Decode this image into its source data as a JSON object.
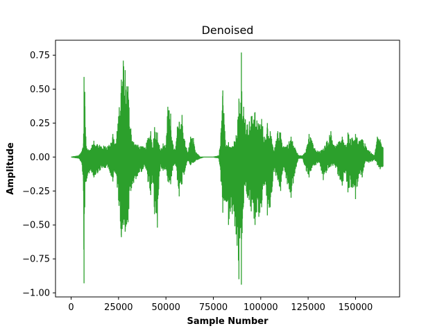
{
  "chart_data": {
    "type": "line",
    "title": "Denoised",
    "xlabel": "Sample Number",
    "ylabel": "Amplitude",
    "xlim": [
      -8250,
      173250
    ],
    "ylim": [
      -1.03,
      0.86
    ],
    "xticks": [
      0,
      25000,
      50000,
      75000,
      100000,
      125000,
      150000
    ],
    "xtick_labels": [
      "0",
      "25000",
      "50000",
      "75000",
      "100000",
      "125000",
      "150000"
    ],
    "yticks": [
      -1.0,
      -0.75,
      -0.5,
      -0.25,
      0.0,
      0.25,
      0.5,
      0.75
    ],
    "ytick_labels": [
      "−1.00",
      "−0.75",
      "−0.50",
      "−0.25",
      "0.00",
      "0.25",
      "0.50",
      "0.75"
    ],
    "grid": false,
    "color": "#2ca02c",
    "series": [
      {
        "envelope_x": [
          0,
          2000,
          4000,
          5500,
          6500,
          6800,
          7200,
          8000,
          10000,
          12000,
          15000,
          18000,
          20000,
          22000,
          23500,
          25000,
          26500,
          27500,
          28500,
          30000,
          31500,
          33000,
          35000,
          37000,
          39000,
          40500,
          42000,
          43000,
          44000,
          45500,
          47000,
          48500,
          50000,
          51000,
          52500,
          53500,
          55000,
          56000,
          57000,
          58500,
          60000,
          61500,
          63000,
          64500,
          65500,
          67000,
          68000,
          70000,
          75000,
          78000,
          79000,
          80000,
          81500,
          83000,
          85000,
          87000,
          88500,
          89500,
          89800,
          90200,
          91000,
          93000,
          95000,
          97000,
          99000,
          100500,
          102000,
          103500,
          105000,
          107000,
          109000,
          110500,
          112000,
          114000,
          116000,
          118000,
          120000,
          122000,
          124000,
          125500,
          127000,
          129000,
          131000,
          133000,
          135000,
          137000,
          139000,
          141000,
          143000,
          144500,
          146000,
          148000,
          150000,
          152000,
          153500,
          155000,
          157000,
          159000,
          160000,
          161500,
          163000,
          164500
        ],
        "upper": [
          0.0,
          0.005,
          0.01,
          0.04,
          0.1,
          0.59,
          0.48,
          0.08,
          0.05,
          0.12,
          0.09,
          0.08,
          0.09,
          0.17,
          0.1,
          0.3,
          0.57,
          0.71,
          0.64,
          0.52,
          0.21,
          0.11,
          0.09,
          0.08,
          0.07,
          0.14,
          0.19,
          0.07,
          0.22,
          0.18,
          0.05,
          0.1,
          0.09,
          0.37,
          0.32,
          0.1,
          0.05,
          0.22,
          0.26,
          0.31,
          0.12,
          0.03,
          0.15,
          0.14,
          0.04,
          0.02,
          0.0,
          0.0,
          0.0,
          0.01,
          0.18,
          0.49,
          0.08,
          0.11,
          0.08,
          0.16,
          0.43,
          0.4,
          0.77,
          0.28,
          0.37,
          0.24,
          0.3,
          0.33,
          0.24,
          0.28,
          0.15,
          0.25,
          0.19,
          0.04,
          0.19,
          0.18,
          0.08,
          0.09,
          0.15,
          0.07,
          0.01,
          0.01,
          0.06,
          0.17,
          0.12,
          0.05,
          0.04,
          0.06,
          0.12,
          0.19,
          0.08,
          0.11,
          0.15,
          0.08,
          0.18,
          0.14,
          0.17,
          0.12,
          0.13,
          0.1,
          0.05,
          0.02,
          0.01,
          0.15,
          0.13,
          0.07
        ],
        "lower": [
          0.0,
          -0.005,
          -0.01,
          -0.04,
          -0.25,
          -0.93,
          -0.37,
          -0.18,
          -0.1,
          -0.15,
          -0.1,
          -0.08,
          -0.09,
          -0.18,
          -0.12,
          -0.32,
          -0.59,
          -0.5,
          -0.55,
          -0.48,
          -0.25,
          -0.19,
          -0.14,
          -0.11,
          -0.07,
          -0.18,
          -0.28,
          -0.19,
          -0.42,
          -0.52,
          -0.07,
          -0.1,
          -0.09,
          -0.18,
          -0.2,
          -0.1,
          -0.05,
          -0.17,
          -0.29,
          -0.2,
          -0.1,
          -0.03,
          -0.06,
          -0.04,
          -0.03,
          -0.02,
          -0.01,
          0.0,
          0.0,
          -0.01,
          -0.18,
          -0.41,
          -0.32,
          -0.5,
          -0.42,
          -0.57,
          -0.9,
          -0.52,
          -0.94,
          -0.56,
          -0.34,
          -0.3,
          -0.4,
          -0.5,
          -0.44,
          -0.37,
          -0.19,
          -0.43,
          -0.37,
          -0.11,
          -0.17,
          -0.25,
          -0.07,
          -0.2,
          -0.3,
          -0.12,
          -0.01,
          -0.01,
          -0.1,
          -0.15,
          -0.08,
          -0.06,
          -0.04,
          -0.17,
          -0.1,
          -0.07,
          -0.06,
          -0.14,
          -0.21,
          -0.12,
          -0.26,
          -0.22,
          -0.31,
          -0.12,
          -0.15,
          -0.04,
          -0.04,
          -0.03,
          -0.02,
          -0.06,
          -0.09,
          -0.07
        ]
      }
    ]
  }
}
